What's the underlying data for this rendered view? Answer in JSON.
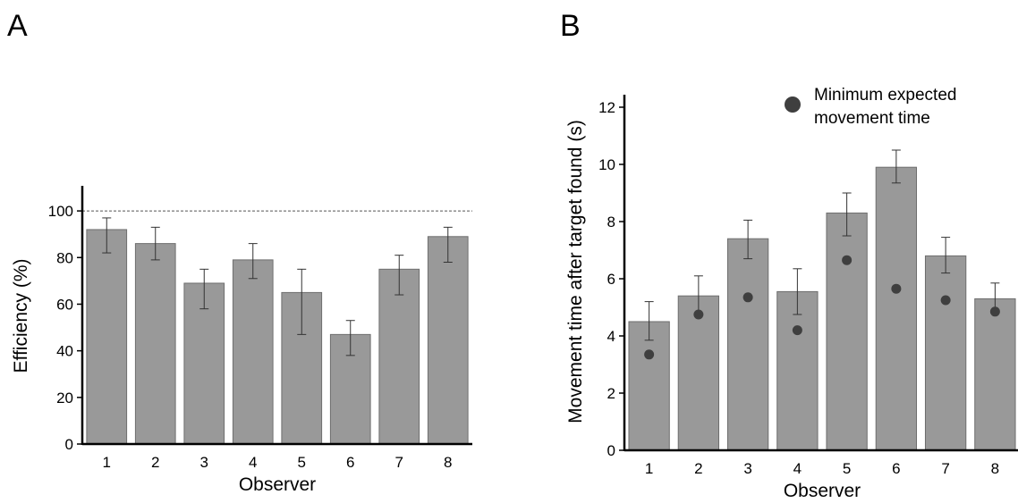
{
  "chart_data": [
    {
      "panel": "A",
      "type": "bar",
      "categories": [
        "1",
        "2",
        "3",
        "4",
        "5",
        "6",
        "7",
        "8"
      ],
      "values": [
        92,
        86,
        69,
        79,
        65,
        47,
        75,
        89
      ],
      "error_low": [
        82,
        79,
        58,
        71,
        47,
        38,
        64,
        78
      ],
      "error_high": [
        97,
        93,
        75,
        86,
        75,
        53,
        81,
        93
      ],
      "reference_line": 100,
      "xlabel": "Observer",
      "ylabel": "Efficiency (%)",
      "ylim": [
        0,
        110
      ],
      "yticks": [
        0,
        20,
        40,
        60,
        80,
        100
      ],
      "bar_color": "#999999",
      "grid": false
    },
    {
      "panel": "B",
      "type": "bar",
      "categories": [
        "1",
        "2",
        "3",
        "4",
        "5",
        "6",
        "7",
        "8"
      ],
      "values": [
        4.5,
        5.4,
        7.4,
        5.55,
        8.3,
        9.9,
        6.8,
        5.3
      ],
      "error_low": [
        3.85,
        4.75,
        6.7,
        4.75,
        7.5,
        9.35,
        6.2,
        4.8
      ],
      "error_high": [
        5.2,
        6.1,
        8.05,
        6.35,
        9.0,
        10.5,
        7.45,
        5.85
      ],
      "points": {
        "name": "Minimum expected movement time",
        "values": [
          3.35,
          4.75,
          5.35,
          4.2,
          6.65,
          5.65,
          5.25,
          4.85
        ]
      },
      "legend_lines": [
        "Minimum expected",
        "movement time"
      ],
      "legend_position": "top-right",
      "xlabel": "Observer",
      "ylabel": "Movement time after target found (s)",
      "ylim": [
        0,
        12.5
      ],
      "yticks": [
        0,
        2,
        4,
        6,
        8,
        10,
        12
      ],
      "bar_color": "#999999",
      "point_color": "#3f3f3f",
      "grid": false
    }
  ],
  "panel_labels": [
    "A",
    "B"
  ]
}
